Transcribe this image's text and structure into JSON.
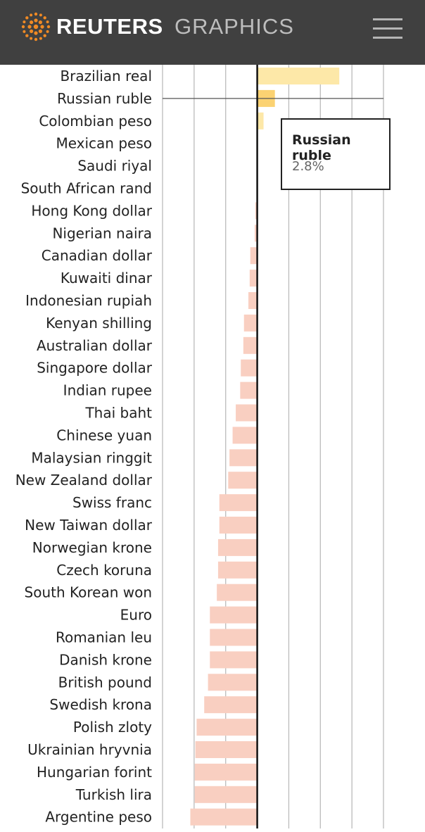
{
  "header": {
    "brand": "REUTERS",
    "section": "GRAPHICS"
  },
  "tooltip": {
    "title": "Russian ruble",
    "value": "2.8%"
  },
  "chart_data": {
    "type": "bar",
    "orientation": "horizontal",
    "unit": "%",
    "xlim": [
      -15,
      20
    ],
    "grid": true,
    "highlighted": "Russian ruble",
    "colors": {
      "positive": "#fde8a8",
      "positive_highlight": "#fbd272",
      "negative": "#f9cfc1",
      "zero_line": "#111111",
      "grid": "#bbbbbb"
    },
    "categories": [
      "Brazilian real",
      "Russian ruble",
      "Colombian peso",
      "Mexican peso",
      "Saudi riyal",
      "South African rand",
      "Hong Kong dollar",
      "Nigerian naira",
      "Canadian dollar",
      "Kuwaiti dinar",
      "Indonesian rupiah",
      "Kenyan shilling",
      "Australian dollar",
      "Singapore dollar",
      "Indian rupee",
      "Thai baht",
      "Chinese yuan",
      "Malaysian ringgit",
      "New Zealand dollar",
      "Swiss franc",
      "New Taiwan dollar",
      "Norwegian krone",
      "Czech koruna",
      "South Korean won",
      "Euro",
      "Romanian leu",
      "Danish krone",
      "British pound",
      "Swedish krona",
      "Polish zloty",
      "Ukrainian hryvnia",
      "Hungarian forint",
      "Turkish lira",
      "Argentine peso"
    ],
    "values": [
      13.0,
      2.8,
      1.0,
      0.1,
      0.0,
      0.0,
      -0.3,
      -0.4,
      -1.1,
      -1.2,
      -1.4,
      -2.1,
      -2.2,
      -2.6,
      -2.7,
      -3.4,
      -3.9,
      -4.4,
      -4.6,
      -6.0,
      -6.0,
      -6.2,
      -6.2,
      -6.4,
      -7.5,
      -7.5,
      -7.5,
      -7.8,
      -8.4,
      -9.6,
      -9.8,
      -9.9,
      -9.9,
      -10.6
    ]
  }
}
